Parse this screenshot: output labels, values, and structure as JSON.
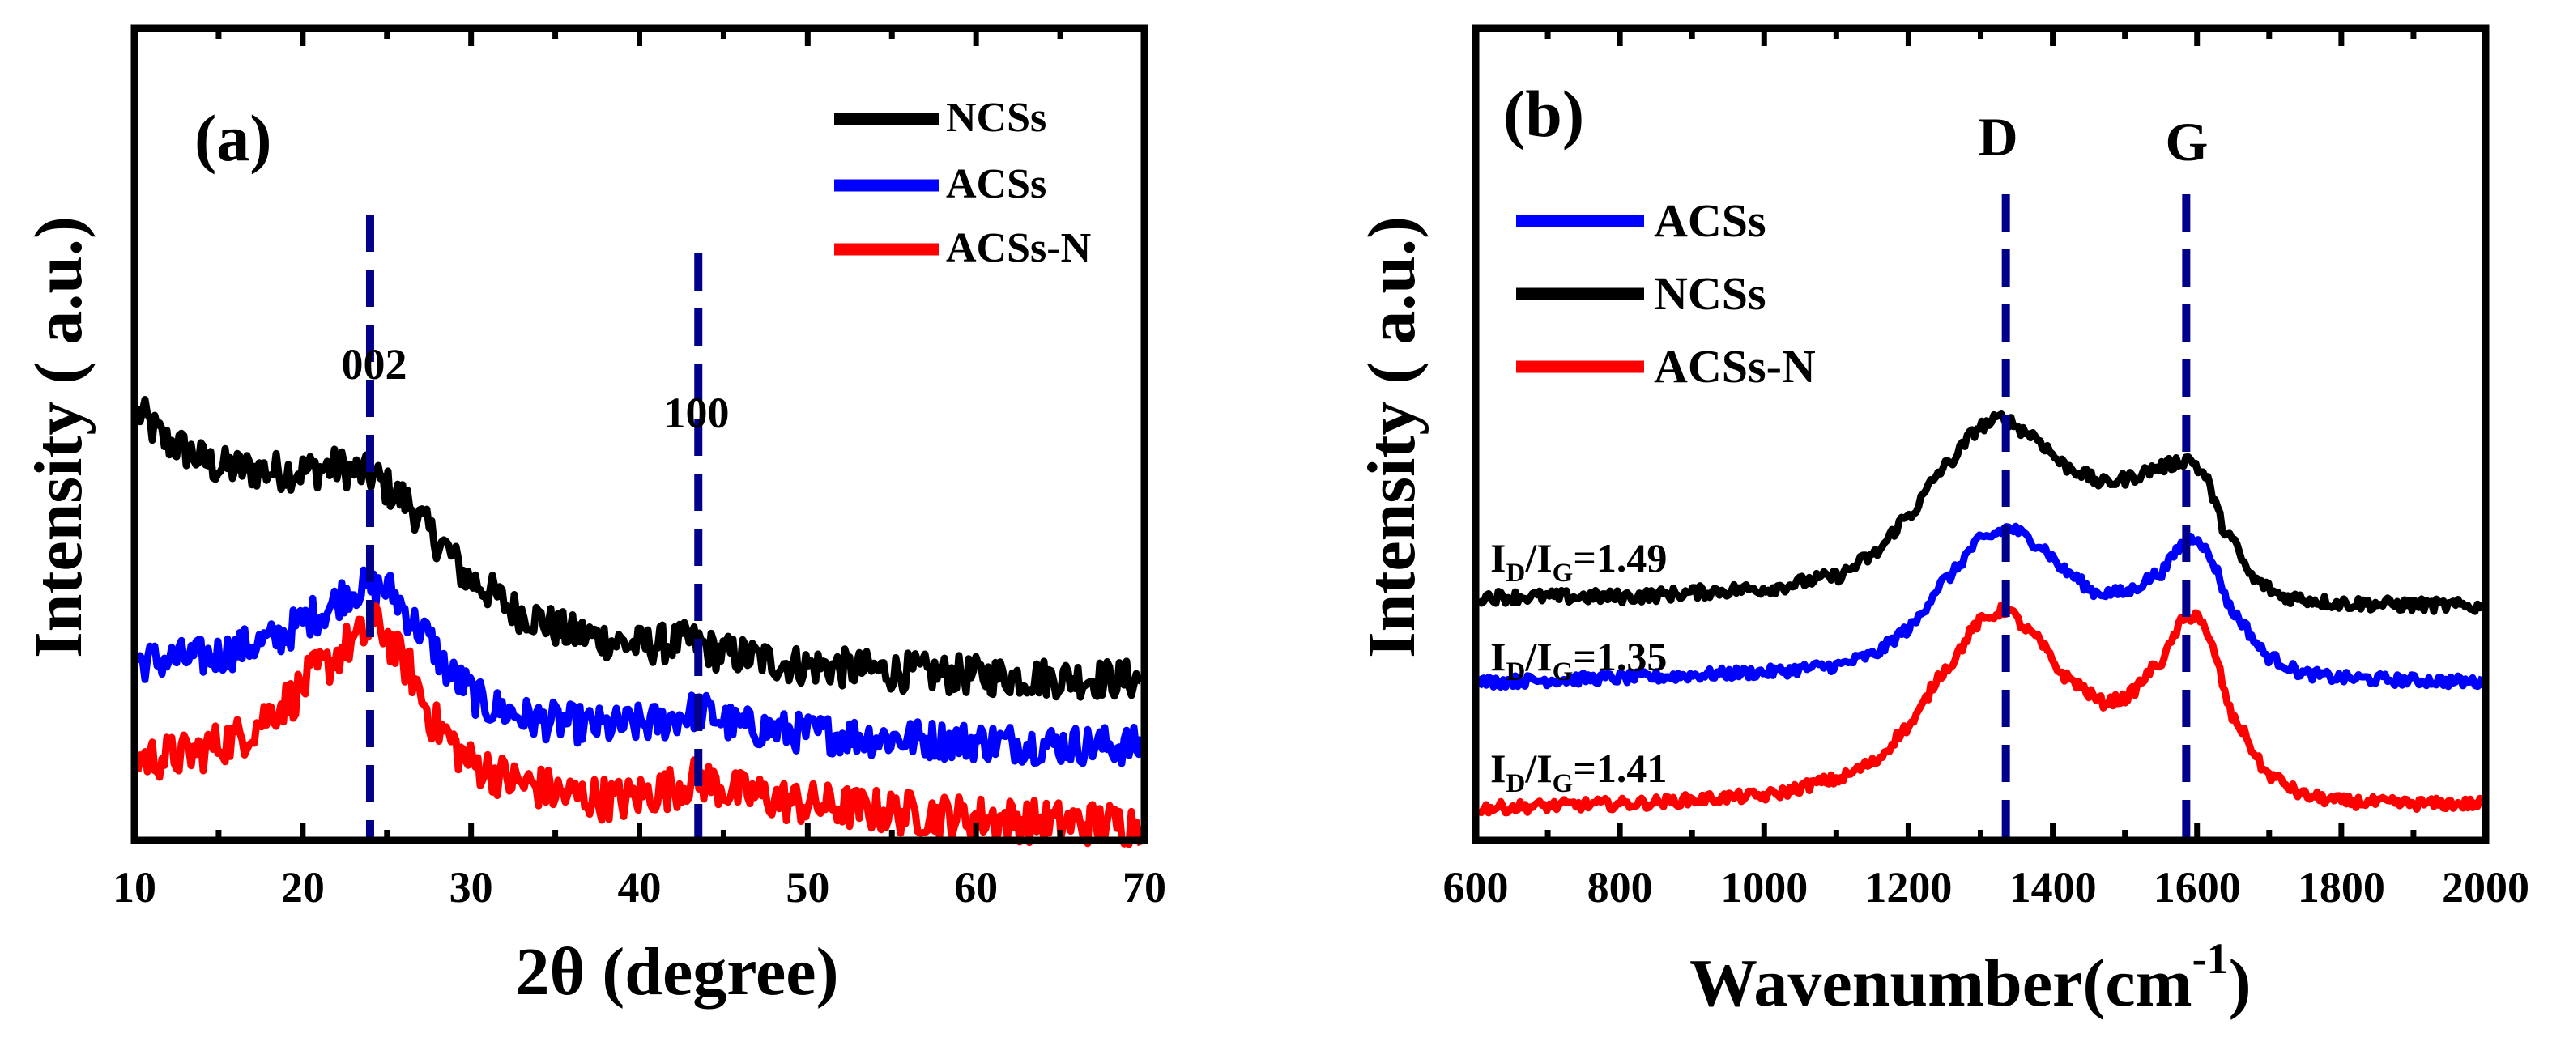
{
  "chart_data": [
    {
      "type": "line",
      "panel_label": "(a)",
      "xlabel": "2θ (degree)",
      "ylabel": "Intensity ( a.u.)",
      "xlim": [
        10,
        70
      ],
      "ylim": [
        0,
        1
      ],
      "xticks": [
        "10",
        "20",
        "30",
        "40",
        "50",
        "60",
        "70"
      ],
      "xtick_values": [
        10,
        20,
        30,
        40,
        50,
        60,
        70
      ],
      "legend": {
        "position": "top-right",
        "entries": [
          "NCSs",
          "ACSs",
          "ACSs-N"
        ]
      },
      "series": [
        {
          "name": "NCSs",
          "color": "#000000",
          "noise": 0.024,
          "x": [
            10,
            12,
            15,
            18,
            20,
            22,
            24,
            26,
            28,
            30,
            33,
            36,
            40,
            43,
            45,
            50,
            55,
            60,
            65,
            70
          ],
          "y": [
            0.53,
            0.49,
            0.46,
            0.455,
            0.455,
            0.46,
            0.45,
            0.42,
            0.37,
            0.32,
            0.28,
            0.255,
            0.24,
            0.245,
            0.23,
            0.215,
            0.208,
            0.203,
            0.2,
            0.198
          ]
        },
        {
          "name": "ACSs",
          "color": "#0000ff",
          "noise": 0.024,
          "x": [
            10,
            14,
            18,
            21,
            23,
            25,
            27,
            29,
            31,
            34,
            38,
            41,
            43.5,
            46,
            50,
            55,
            60,
            65,
            70
          ],
          "y": [
            0.22,
            0.225,
            0.245,
            0.28,
            0.31,
            0.31,
            0.26,
            0.2,
            0.165,
            0.148,
            0.14,
            0.145,
            0.16,
            0.14,
            0.132,
            0.126,
            0.122,
            0.118,
            0.116
          ]
        },
        {
          "name": "ACSs-N",
          "color": "#ff0000",
          "noise": 0.027,
          "x": [
            10,
            13,
            16,
            19,
            21,
            23,
            24.5,
            26,
            28,
            30,
            33,
            36,
            39,
            41,
            43.5,
            46,
            50,
            55,
            60,
            65,
            70
          ],
          "y": [
            0.1,
            0.105,
            0.125,
            0.17,
            0.21,
            0.245,
            0.265,
            0.22,
            0.14,
            0.095,
            0.07,
            0.055,
            0.05,
            0.06,
            0.075,
            0.058,
            0.045,
            0.035,
            0.028,
            0.022,
            0.02
          ]
        }
      ],
      "reference_lines": [
        {
          "x": 24,
          "label": "002",
          "color": "#00008b"
        },
        {
          "x": 43.5,
          "label": "100",
          "color": "#00008b"
        }
      ]
    },
    {
      "type": "line",
      "panel_label": "(b)",
      "xlabel": "Wavenumber(cm",
      "xlabel_superscript": "-1",
      "xlabel_suffix": ")",
      "ylabel": "Intensity ( a.u.)",
      "xlim": [
        600,
        2000
      ],
      "ylim": [
        0,
        1
      ],
      "xticks": [
        "600",
        "800",
        "1000",
        "1200",
        "1400",
        "1600",
        "1800",
        "2000"
      ],
      "xtick_values": [
        600,
        800,
        1000,
        1200,
        1400,
        1600,
        1800,
        2000
      ],
      "legend": {
        "position": "top-left",
        "entries": [
          "ACSs",
          "NCSs",
          "ACSs-N"
        ]
      },
      "series": [
        {
          "name": "ACSs",
          "color": "#0000ff",
          "noise": 0.007,
          "x": [
            600,
            800,
            1000,
            1100,
            1150,
            1200,
            1250,
            1300,
            1340,
            1380,
            1420,
            1460,
            1500,
            1550,
            1580,
            1600,
            1620,
            1650,
            1700,
            1750,
            1800,
            1900,
            2000
          ],
          "y": [
            0.195,
            0.2,
            0.207,
            0.215,
            0.228,
            0.26,
            0.32,
            0.37,
            0.385,
            0.365,
            0.33,
            0.305,
            0.305,
            0.33,
            0.365,
            0.375,
            0.345,
            0.28,
            0.225,
            0.205,
            0.2,
            0.197,
            0.195
          ]
        },
        {
          "name": "NCSs",
          "color": "#000000",
          "noise": 0.008,
          "x": [
            600,
            800,
            1000,
            1100,
            1150,
            1200,
            1250,
            1300,
            1330,
            1370,
            1420,
            1470,
            1500,
            1550,
            1590,
            1610,
            1640,
            1680,
            1720,
            1800,
            1900,
            2000
          ],
          "y": [
            0.3,
            0.3,
            0.31,
            0.325,
            0.35,
            0.4,
            0.46,
            0.51,
            0.52,
            0.5,
            0.46,
            0.44,
            0.445,
            0.46,
            0.47,
            0.45,
            0.38,
            0.32,
            0.3,
            0.292,
            0.29,
            0.288
          ]
        },
        {
          "name": "ACSs-N",
          "color": "#ff0000",
          "noise": 0.007,
          "x": [
            600,
            800,
            1000,
            1100,
            1150,
            1200,
            1250,
            1300,
            1335,
            1370,
            1420,
            1470,
            1500,
            1550,
            1580,
            1600,
            1620,
            1650,
            1700,
            1750,
            1800,
            1900,
            2000
          ],
          "y": [
            0.04,
            0.045,
            0.055,
            0.075,
            0.095,
            0.14,
            0.21,
            0.27,
            0.285,
            0.255,
            0.2,
            0.17,
            0.175,
            0.22,
            0.27,
            0.28,
            0.24,
            0.15,
            0.08,
            0.055,
            0.048,
            0.045,
            0.045
          ]
        }
      ],
      "reference_lines": [
        {
          "x": 1335,
          "label": "D",
          "color": "#00008b"
        },
        {
          "x": 1585,
          "label": "G",
          "color": "#00008b"
        }
      ],
      "annotations": [
        {
          "series": "NCSs",
          "color": "#000000",
          "pre": "I",
          "sub1": "D",
          "mid": "/I",
          "sub2": "G",
          "value": "=1.49"
        },
        {
          "series": "ACSs",
          "color": "#0000ff",
          "pre": "I",
          "sub1": "D",
          "mid": "/I",
          "sub2": "G",
          "value": "=1.35"
        },
        {
          "series": "ACSs-N",
          "color": "#ff0000",
          "pre": "I",
          "sub1": "D",
          "mid": "/I",
          "sub2": "G",
          "value": "=1.41"
        }
      ]
    }
  ]
}
